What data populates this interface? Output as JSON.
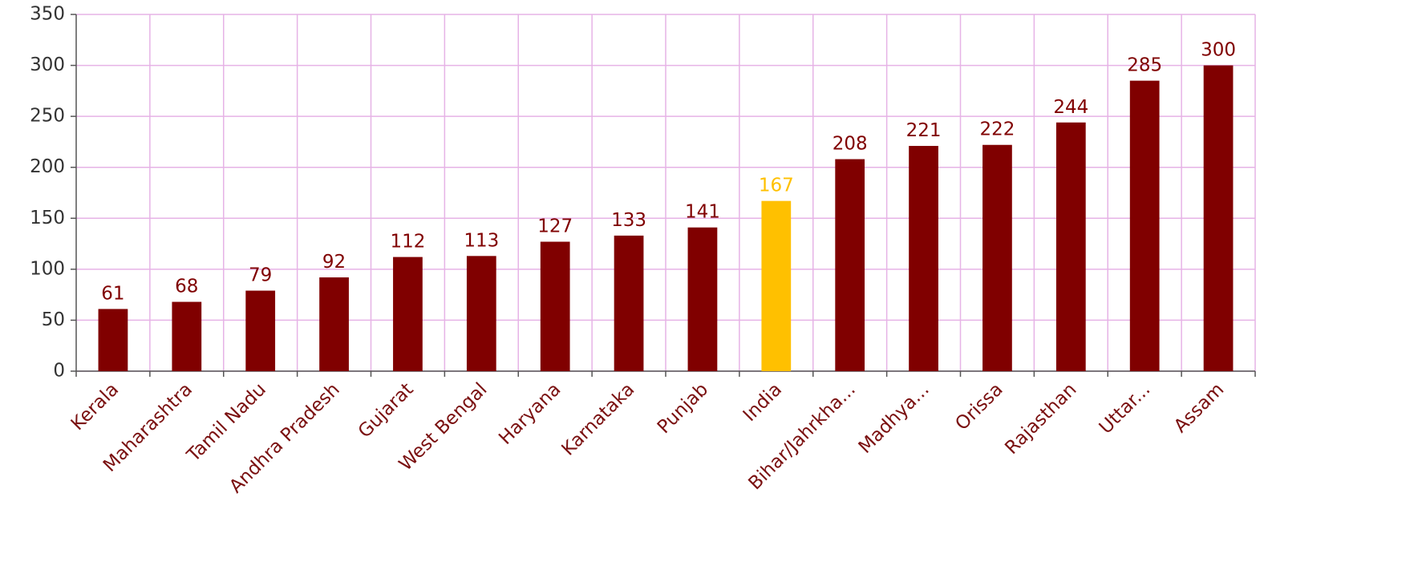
{
  "chart_data": {
    "type": "bar",
    "categories": [
      "Kerala",
      "Maharashtra",
      "Tamil Nadu",
      "Andhra Pradesh",
      "Gujarat",
      "West Bengal",
      "Haryana",
      "Karnataka",
      "Punjab",
      "India",
      "Bihar/Jahrkha...",
      "Madhya...",
      "Orissa",
      "Rajasthan",
      "Uttar...",
      "Assam"
    ],
    "values": [
      61,
      68,
      79,
      92,
      112,
      113,
      127,
      133,
      141,
      167,
      208,
      221,
      222,
      244,
      285,
      300
    ],
    "colors": [
      "#800000",
      "#800000",
      "#800000",
      "#800000",
      "#800000",
      "#800000",
      "#800000",
      "#800000",
      "#800000",
      "#ffc000",
      "#800000",
      "#800000",
      "#800000",
      "#800000",
      "#800000",
      "#800000"
    ],
    "ylim": [
      0,
      350
    ],
    "yticks": [
      0,
      50,
      100,
      150,
      200,
      250,
      300,
      350
    ],
    "grid": true
  }
}
